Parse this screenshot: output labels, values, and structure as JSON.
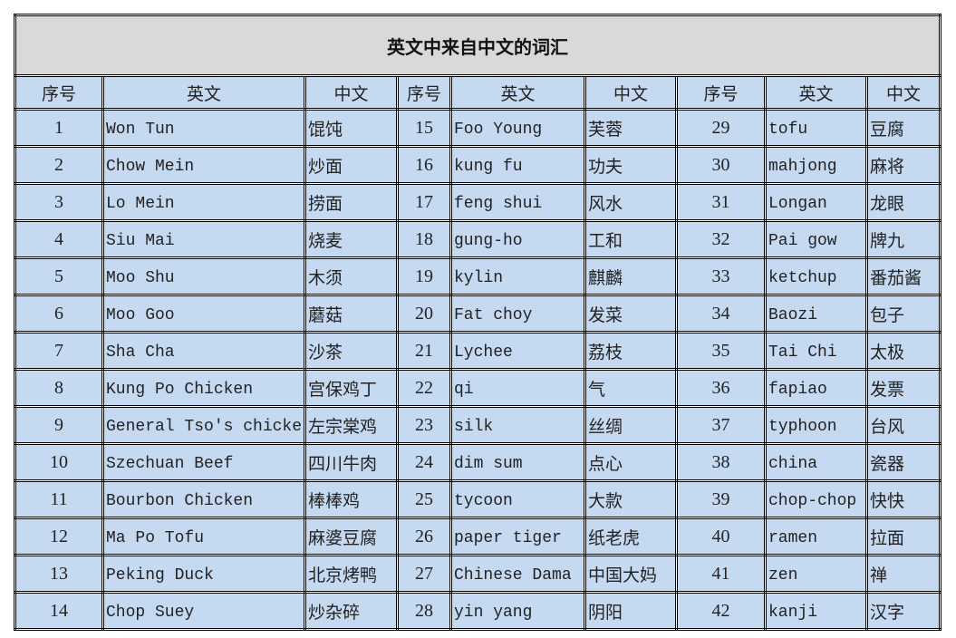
{
  "title": "英文中来自中文的词汇",
  "headers": [
    "序号",
    "英文",
    "中文",
    "序号",
    "英文",
    "中文",
    "序号",
    "英文",
    "中文"
  ],
  "rows": [
    [
      [
        "1",
        "Won Tun",
        "馄饨"
      ],
      [
        "15",
        "Foo Young",
        "芙蓉"
      ],
      [
        "29",
        "tofu",
        "豆腐"
      ]
    ],
    [
      [
        "2",
        "Chow Mein",
        "炒面"
      ],
      [
        "16",
        "kung fu",
        "功夫"
      ],
      [
        "30",
        "mahjong",
        "麻将"
      ]
    ],
    [
      [
        "3",
        "Lo Mein",
        "捞面"
      ],
      [
        "17",
        "feng shui",
        "风水"
      ],
      [
        "31",
        "Longan",
        "龙眼"
      ]
    ],
    [
      [
        "4",
        "Siu Mai",
        "烧麦"
      ],
      [
        "18",
        "gung-ho",
        "工和"
      ],
      [
        "32",
        "Pai gow",
        "牌九"
      ]
    ],
    [
      [
        "5",
        "Moo Shu",
        "木须"
      ],
      [
        "19",
        "kylin",
        "麒麟"
      ],
      [
        "33",
        "ketchup",
        "番茄酱"
      ]
    ],
    [
      [
        "6",
        "Moo Goo",
        "蘑菇"
      ],
      [
        "20",
        "Fat choy",
        "发菜"
      ],
      [
        "34",
        "Baozi",
        "包子"
      ]
    ],
    [
      [
        "7",
        "Sha Cha",
        "沙茶"
      ],
      [
        "21",
        "Lychee",
        "荔枝"
      ],
      [
        "35",
        "Tai Chi",
        "太极"
      ]
    ],
    [
      [
        "8",
        "Kung Po Chicken",
        "宫保鸡丁"
      ],
      [
        "22",
        "qi",
        "气"
      ],
      [
        "36",
        "fapiao",
        "发票"
      ]
    ],
    [
      [
        "9",
        "General Tso's chicke",
        "左宗棠鸡"
      ],
      [
        "23",
        "silk",
        "丝绸"
      ],
      [
        "37",
        "typhoon",
        "台风"
      ]
    ],
    [
      [
        "10",
        "Szechuan Beef",
        "四川牛肉"
      ],
      [
        "24",
        "dim sum",
        "点心"
      ],
      [
        "38",
        "china",
        "瓷器"
      ]
    ],
    [
      [
        "11",
        "Bourbon Chicken",
        "棒棒鸡"
      ],
      [
        "25",
        "tycoon",
        "大款"
      ],
      [
        "39",
        "chop-chop",
        "快快"
      ]
    ],
    [
      [
        "12",
        "Ma Po Tofu",
        "麻婆豆腐"
      ],
      [
        "26",
        "paper tiger",
        "纸老虎"
      ],
      [
        "40",
        "ramen",
        "拉面"
      ]
    ],
    [
      [
        "13",
        "Peking Duck",
        "北京烤鸭"
      ],
      [
        "27",
        "Chinese Dama",
        "中国大妈"
      ],
      [
        "41",
        "zen",
        "禅"
      ]
    ],
    [
      [
        "14",
        "Chop Suey",
        "炒杂碎"
      ],
      [
        "28",
        "yin yang",
        "阴阳"
      ],
      [
        "42",
        "kanji",
        "汉字"
      ]
    ]
  ],
  "colors": {
    "cell_bg": "#c5d9f1",
    "title_bg": "#d9d9d9",
    "border": "#000000"
  }
}
